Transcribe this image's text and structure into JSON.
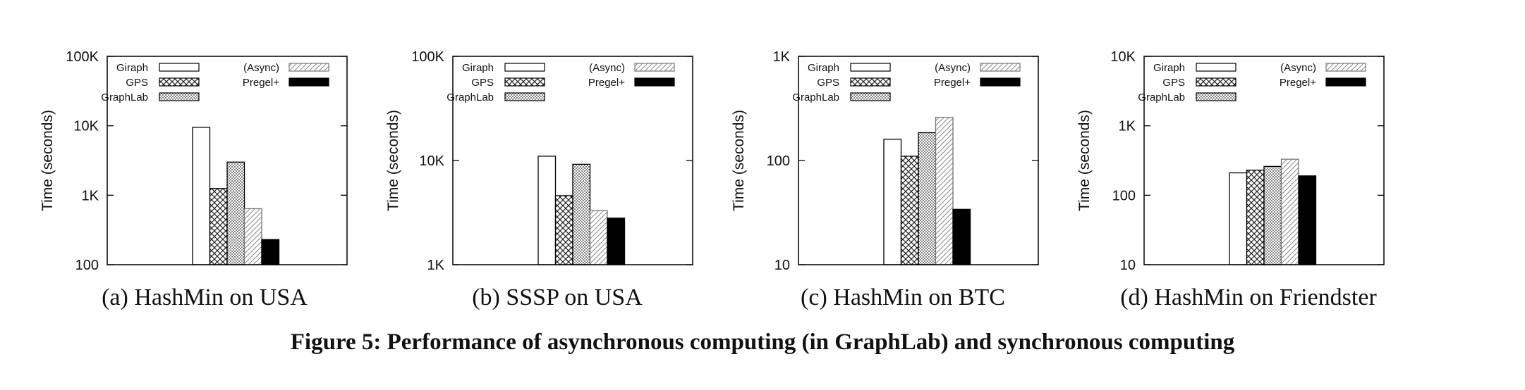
{
  "figure_caption": "Figure 5: Performance of asynchronous computing (in GraphLab) and synchronous computing",
  "legend": {
    "series": [
      {
        "name": "Giraph",
        "pattern": "empty"
      },
      {
        "name": "GPS",
        "pattern": "crosshatch"
      },
      {
        "name": "GraphLab",
        "pattern": "dots"
      },
      {
        "name": "(Async)",
        "pattern": "diagonal"
      },
      {
        "name": "Pregel+",
        "pattern": "solid"
      }
    ]
  },
  "chart_data": [
    {
      "type": "bar",
      "title": "(a)  HashMin on USA",
      "ylabel": "Time (seconds)",
      "yscale": "log",
      "ylim": [
        100,
        100000
      ],
      "yticks": [
        100,
        1000,
        10000,
        100000
      ],
      "yticklabels": [
        "100",
        "1K",
        "10K",
        "100K"
      ],
      "series": [
        {
          "name": "Giraph",
          "value": 9500
        },
        {
          "name": "GPS",
          "value": 1250
        },
        {
          "name": "GraphLab",
          "value": 3000
        },
        {
          "name": "(Async)",
          "value": 640
        },
        {
          "name": "Pregel+",
          "value": 230
        }
      ]
    },
    {
      "type": "bar",
      "title": "(b)  SSSP on USA",
      "ylabel": "Time (seconds)",
      "yscale": "log",
      "ylim": [
        1000,
        100000
      ],
      "yticks": [
        1000,
        10000,
        100000
      ],
      "yticklabels": [
        "1K",
        "10K",
        "100K"
      ],
      "series": [
        {
          "name": "Giraph",
          "value": 11000
        },
        {
          "name": "GPS",
          "value": 4600
        },
        {
          "name": "GraphLab",
          "value": 9200
        },
        {
          "name": "(Async)",
          "value": 3300
        },
        {
          "name": "Pregel+",
          "value": 2800
        }
      ]
    },
    {
      "type": "bar",
      "title": "(c)  HashMin on BTC",
      "ylabel": "Time (seconds)",
      "yscale": "log",
      "ylim": [
        10,
        1000
      ],
      "yticks": [
        10,
        100,
        1000
      ],
      "yticklabels": [
        "10",
        "100",
        "1K"
      ],
      "series": [
        {
          "name": "Giraph",
          "value": 160
        },
        {
          "name": "GPS",
          "value": 110
        },
        {
          "name": "GraphLab",
          "value": 185
        },
        {
          "name": "(Async)",
          "value": 260
        },
        {
          "name": "Pregel+",
          "value": 34
        }
      ]
    },
    {
      "type": "bar",
      "title": "(d)  HashMin on Friendster",
      "ylabel": "Time (seconds)",
      "yscale": "log",
      "ylim": [
        10,
        10000
      ],
      "yticks": [
        10,
        100,
        1000,
        10000
      ],
      "yticklabels": [
        "10",
        "100",
        "1K",
        "10K"
      ],
      "series": [
        {
          "name": "Giraph",
          "value": 210
        },
        {
          "name": "GPS",
          "value": 230
        },
        {
          "name": "GraphLab",
          "value": 260
        },
        {
          "name": "(Async)",
          "value": 330
        },
        {
          "name": "Pregel+",
          "value": 190
        }
      ]
    }
  ]
}
